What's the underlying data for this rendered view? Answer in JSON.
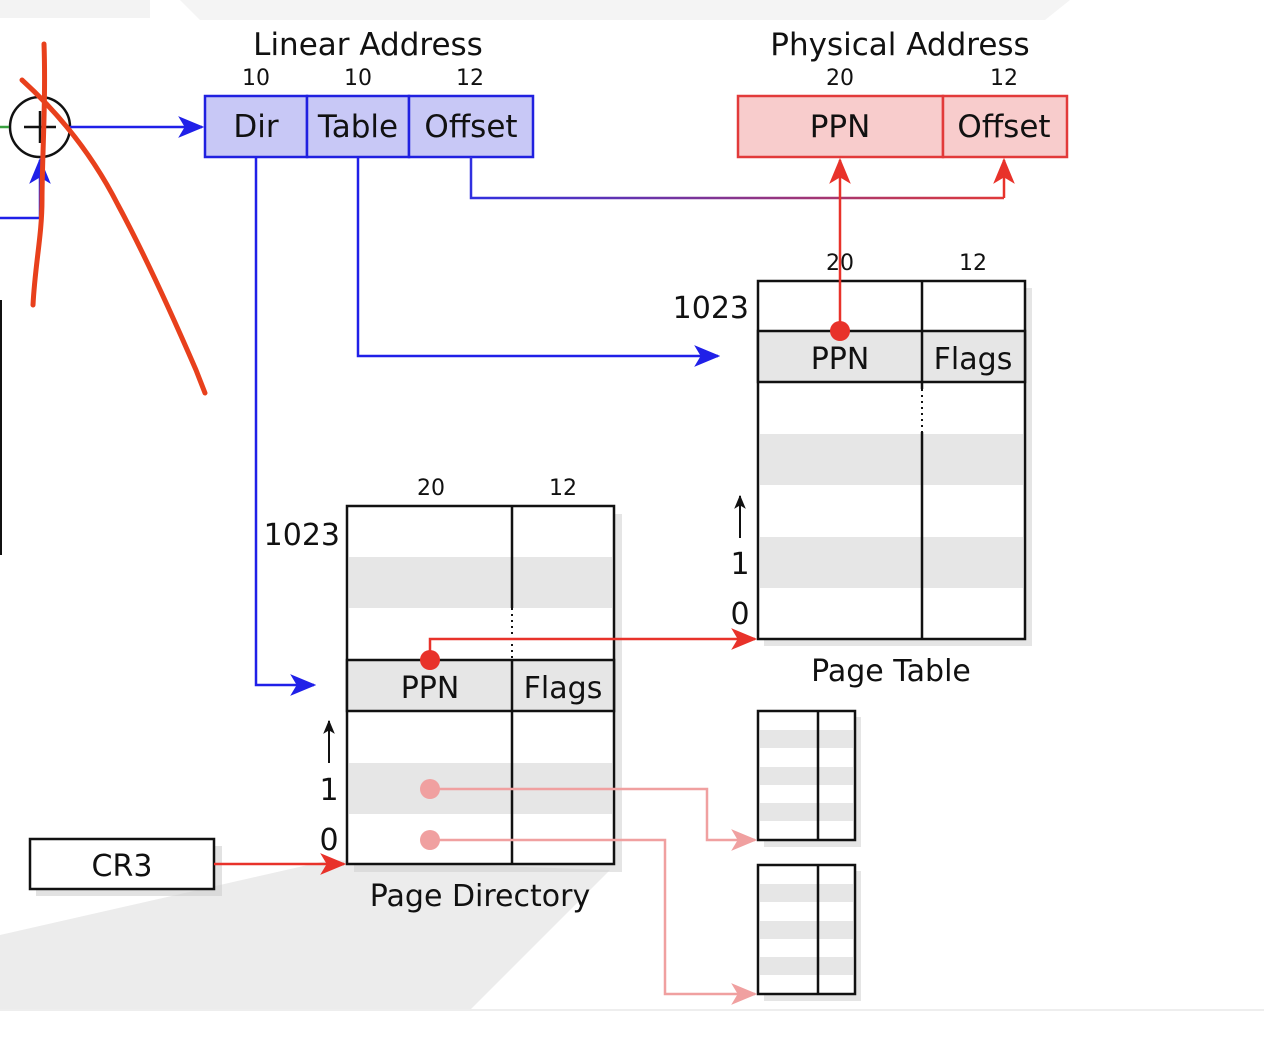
{
  "linear_address": {
    "title": "Linear Address",
    "fields": [
      {
        "label": "Dir",
        "bits": "10"
      },
      {
        "label": "Table",
        "bits": "10"
      },
      {
        "label": "Offset",
        "bits": "12"
      }
    ]
  },
  "physical_address": {
    "title": "Physical Address",
    "fields": [
      {
        "label": "PPN",
        "bits": "20"
      },
      {
        "label": "Offset",
        "bits": "12"
      }
    ]
  },
  "page_table": {
    "caption": "Page Table",
    "col_bits": [
      "20",
      "12"
    ],
    "entry": {
      "ppn": "PPN",
      "flags": "Flags"
    },
    "index_top": "1023",
    "index_one": "1",
    "index_zero": "0"
  },
  "page_directory": {
    "caption": "Page Directory",
    "col_bits": [
      "20",
      "12"
    ],
    "entry": {
      "ppn": "PPN",
      "flags": "Flags"
    },
    "index_top": "1023",
    "index_one": "1",
    "index_zero": "0"
  },
  "cr3": {
    "label": "CR3"
  },
  "colors": {
    "linear_fill": "#c8c8f6",
    "linear_stroke": "#2020e0",
    "physical_fill": "#f8cccc",
    "physical_stroke": "#e23a3a",
    "arrow_blue": "#2020e8",
    "arrow_red": "#e8322a",
    "arrow_pink": "#f0a0a0",
    "ink_annotation": "#e8401c"
  }
}
